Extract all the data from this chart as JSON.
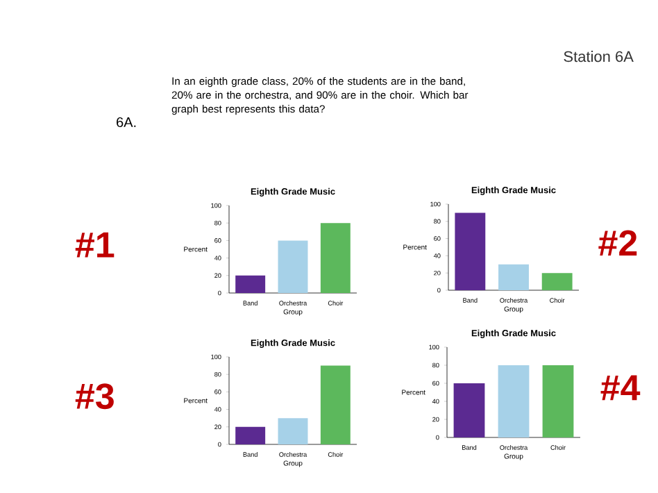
{
  "chart_data": [
    {
      "type": "other",
      "title": "Station 6A",
      "annotations": [
        "6A.",
        "In an eighth grade class, 20% of the students are in the band, 20% are in the orchestra, and 90% are in the choir. Which bar graph best represents this data?"
      ]
    },
    {
      "type": "bar",
      "title": "Eighth Grade Music",
      "xlabel": "Group",
      "ylabel": "Percent",
      "categories": [
        "Band",
        "Orchestra",
        "Choir"
      ],
      "values": [
        20,
        60,
        80
      ],
      "colors": [
        "#5b2a91",
        "#a6d1e8",
        "#5cb85c"
      ],
      "ylim": [
        0,
        100
      ],
      "yticks": [
        0,
        20,
        40,
        60,
        80,
        100
      ],
      "annotations": [
        "#1"
      ]
    },
    {
      "type": "bar",
      "title": "Eighth Grade Music",
      "xlabel": "Group",
      "ylabel": "Percent",
      "categories": [
        "Band",
        "Orchestra",
        "Choir"
      ],
      "values": [
        90,
        30,
        20
      ],
      "colors": [
        "#5b2a91",
        "#a6d1e8",
        "#5cb85c"
      ],
      "ylim": [
        0,
        100
      ],
      "yticks": [
        0,
        20,
        40,
        60,
        80,
        100
      ],
      "annotations": [
        "#2"
      ]
    },
    {
      "type": "bar",
      "title": "Eighth Grade Music",
      "xlabel": "Group",
      "ylabel": "Percent",
      "categories": [
        "Band",
        "Orchestra",
        "Choir"
      ],
      "values": [
        20,
        30,
        90
      ],
      "colors": [
        "#5b2a91",
        "#a6d1e8",
        "#5cb85c"
      ],
      "ylim": [
        0,
        100
      ],
      "yticks": [
        0,
        20,
        40,
        60,
        80,
        100
      ],
      "annotations": [
        "#3"
      ]
    },
    {
      "type": "bar",
      "title": "Eighth Grade Music",
      "xlabel": "Group",
      "ylabel": "Percent",
      "categories": [
        "Band",
        "Orchestra",
        "Choir"
      ],
      "values": [
        60,
        80,
        80
      ],
      "colors": [
        "#5b2a91",
        "#a6d1e8",
        "#5cb85c"
      ],
      "ylim": [
        0,
        100
      ],
      "yticks": [
        0,
        20,
        40,
        60,
        80,
        100
      ],
      "annotations": [
        "#4"
      ]
    }
  ]
}
